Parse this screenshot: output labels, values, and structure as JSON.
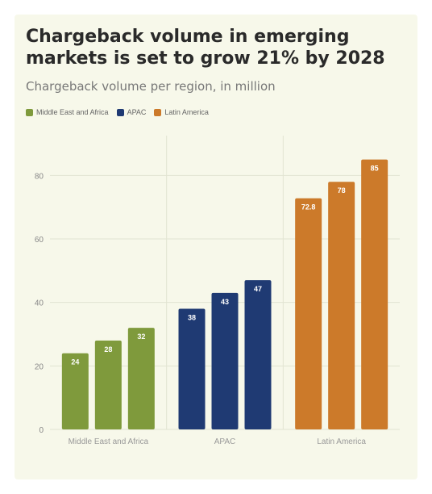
{
  "chart_data": {
    "type": "bar",
    "title": "Chargeback volume in emerging markets is set to grow 21% by 2028",
    "subtitle": "Chargeback volume per region, in million",
    "xlabel": "",
    "ylabel": "",
    "ylim": [
      0,
      90
    ],
    "yticks": [
      "0",
      "20",
      "40",
      "60",
      "80"
    ],
    "grid": true,
    "legend_position": "top-left",
    "colors": {
      "Middle East and Africa": "#7f9a3c",
      "APAC": "#1f3a73",
      "Latin America": "#cc7a2a"
    },
    "series": [
      {
        "name": "Middle East and Africa",
        "region_label": "Middle East and Africa",
        "values": [
          24,
          28,
          32
        ],
        "labels": [
          "24",
          "28",
          "32"
        ]
      },
      {
        "name": "APAC",
        "region_label": "APAC",
        "values": [
          38,
          43,
          47
        ],
        "labels": [
          "38",
          "43",
          "47"
        ]
      },
      {
        "name": "Latin America",
        "region_label": "Latin America",
        "values": [
          72.8,
          78,
          85
        ],
        "labels": [
          "72.8",
          "78",
          "85"
        ]
      }
    ]
  }
}
